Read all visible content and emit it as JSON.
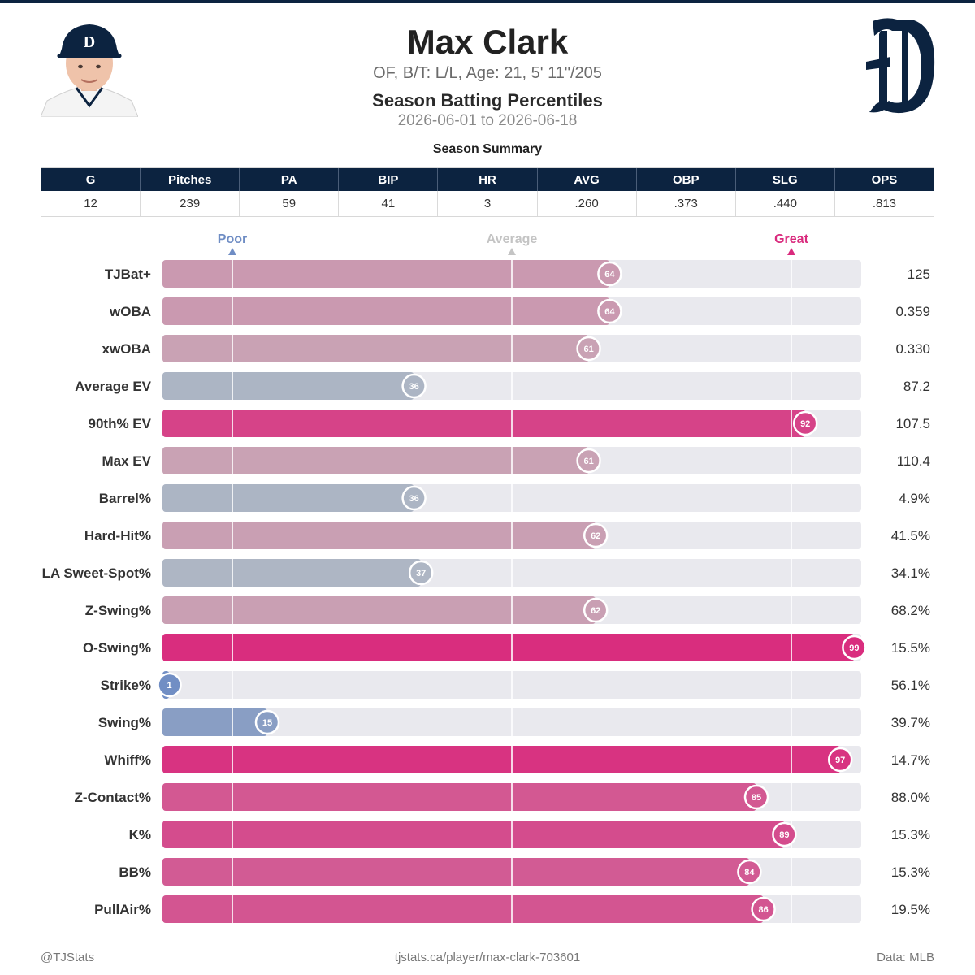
{
  "header": {
    "title": "Max Clark",
    "subtitle": "OF, B/T: L/L, Age: 21, 5' 11\"/205",
    "chart_title": "Season Batting Percentiles",
    "date_range": "2026-06-01 to 2026-06-18"
  },
  "summary": {
    "title": "Season Summary",
    "headers": [
      "G",
      "Pitches",
      "PA",
      "BIP",
      "HR",
      "AVG",
      "OBP",
      "SLG",
      "OPS"
    ],
    "values": [
      "12",
      "239",
      "59",
      "41",
      "3",
      ".260",
      ".373",
      ".440",
      ".813"
    ]
  },
  "chart_data": {
    "type": "bar",
    "orientation": "horizontal",
    "xlim": [
      0,
      100
    ],
    "reference_lines": [
      {
        "label": "Poor",
        "value": 10,
        "color": "#6f8dc4"
      },
      {
        "label": "Average",
        "value": 50,
        "color": "#c4c4c4"
      },
      {
        "label": "Great",
        "value": 90,
        "color": "#d92a7d"
      }
    ],
    "categories": [
      "TJBat+",
      "wOBA",
      "xwOBA",
      "Average EV",
      "90th% EV",
      "Max EV",
      "Barrel%",
      "Hard-Hit%",
      "LA Sweet-Spot%",
      "Z-Swing%",
      "O-Swing%",
      "Strike%",
      "Swing%",
      "Whiff%",
      "Z-Contact%",
      "K%",
      "BB%",
      "PullAir%"
    ],
    "percentiles": [
      64,
      64,
      61,
      36,
      92,
      61,
      36,
      62,
      37,
      62,
      99,
      1,
      15,
      97,
      85,
      89,
      84,
      86
    ],
    "stat_values": [
      "125",
      "0.359",
      "0.330",
      "87.2",
      "107.5",
      "110.4",
      "4.9%",
      "41.5%",
      "34.1%",
      "68.2%",
      "15.5%",
      "56.1%",
      "39.7%",
      "14.7%",
      "88.0%",
      "15.3%",
      "15.3%",
      "19.5%"
    ],
    "colors": {
      "low": "#6f8dc4",
      "mid": "#c4c4c4",
      "high": "#d92a7d",
      "track": "#e9e9ee"
    }
  },
  "footer": {
    "left": "@TJStats",
    "center": "tjstats.ca/player/max-clark-703601",
    "right": "Data: MLB"
  },
  "icons": {
    "headshot": "player-headshot",
    "team_logo": "tigers-old-english-d-logo"
  }
}
